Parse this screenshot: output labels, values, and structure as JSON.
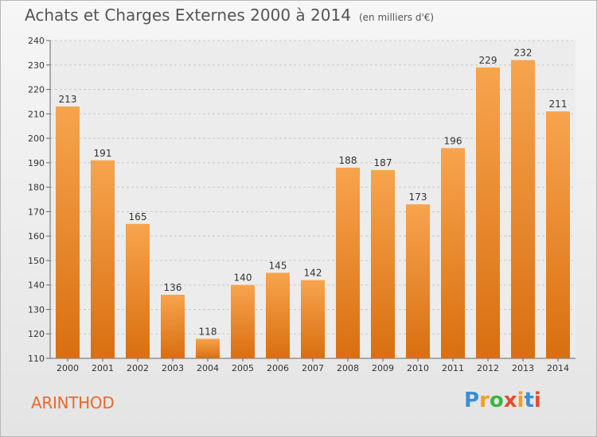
{
  "header": {
    "title": "Achats et Charges Externes 2000 à 2014",
    "unit": "(en milliers d'€)"
  },
  "place": "ARINTHOD",
  "logo": {
    "letters": [
      "P",
      "r",
      "o",
      "x",
      "i",
      "t",
      "i"
    ],
    "colors": [
      "#3a8fd6",
      "#f0a020",
      "#3ab54a",
      "#e84c2a",
      "#f0a020",
      "#3a8fd6",
      "#e84c2a"
    ]
  },
  "colors": {
    "bar_top": "#f7a44e",
    "bar_bottom": "#d86f10",
    "place": "#e86a2a"
  },
  "chart_data": {
    "type": "bar",
    "title": "Achats et Charges Externes 2000 à 2014",
    "subtitle": "(en milliers d'€)",
    "categories": [
      "2000",
      "2001",
      "2002",
      "2003",
      "2004",
      "2005",
      "2006",
      "2007",
      "2008",
      "2009",
      "2010",
      "2011",
      "2012",
      "2013",
      "2014"
    ],
    "values": [
      213,
      191,
      165,
      136,
      118,
      140,
      145,
      142,
      188,
      187,
      173,
      196,
      229,
      232,
      211
    ],
    "ylim": [
      110,
      240
    ],
    "yticks": [
      110,
      120,
      130,
      140,
      150,
      160,
      170,
      180,
      190,
      200,
      210,
      220,
      230,
      240
    ],
    "grid": true
  }
}
